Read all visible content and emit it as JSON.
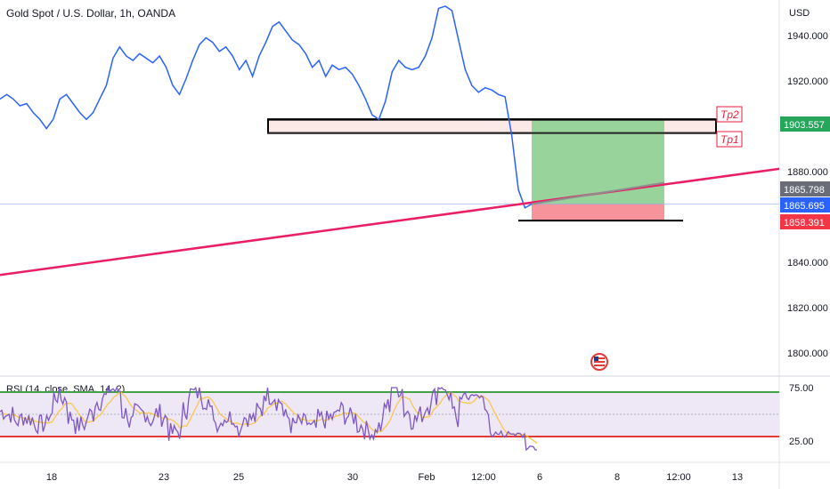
{
  "header": {
    "symbol": "Gold Spot / U.S. Dollar, 1h, OANDA",
    "currency": "USD"
  },
  "colors": {
    "price_line": "#2962ff",
    "trendline": "#e91e63",
    "profit_zone": "#97d39a",
    "loss_zone": "#f7939b",
    "last_price_badge": "#2962ff",
    "target_badge": "#26a65b",
    "stop_badge": "#f23645",
    "crosshair_badge": "#6a6d78",
    "rsi_line": "#7e57c2",
    "rsi_sma": "#f9c74f",
    "rsi_upper": "#43a047",
    "rsi_lower": "#e53935",
    "rsi_band": "#ede7f6",
    "tp_label": "#e91e3c"
  },
  "rsi": {
    "label": "RSI (14, close, SMA, 14, 2)",
    "tick_labels": [
      "75.00",
      "25.00"
    ],
    "upper_level": 75,
    "lower_level": 25
  },
  "annotations": {
    "tp2": "Tp2",
    "tp1": "Tp1",
    "badges": [
      "1903.557",
      "1865.798",
      "1865.695",
      "1858.391"
    ]
  },
  "chart_data": {
    "type": "line",
    "title": "Gold Spot / U.S. Dollar, 1h, OANDA",
    "ylabel": "USD",
    "ylim": [
      1790,
      1955
    ],
    "y_ticks": [
      "1940.000",
      "1920.000",
      "1900.000",
      "1880.000",
      "1840.000",
      "1820.000",
      "1800.000"
    ],
    "x_tick_labels": [
      "18",
      "23",
      "25",
      "30",
      "Feb",
      "12:00",
      "6",
      "8",
      "12:00",
      "13"
    ],
    "series": [
      {
        "values": [
          1912,
          1914,
          1912,
          1909,
          1910,
          1906,
          1903,
          1899,
          1903,
          1912,
          1914,
          1910,
          1906,
          1903,
          1906,
          1912,
          1918,
          1930,
          1935,
          1931,
          1929,
          1932,
          1930,
          1928,
          1931,
          1926,
          1918,
          1914,
          1921,
          1929,
          1936,
          1939,
          1937,
          1933,
          1935,
          1931,
          1925,
          1929,
          1922,
          1931,
          1937,
          1944,
          1946,
          1942,
          1938,
          1936,
          1932,
          1926,
          1929,
          1922,
          1927,
          1925,
          1926,
          1923,
          1918,
          1912,
          1905,
          1903,
          1911,
          1924,
          1929,
          1926,
          1925,
          1926,
          1931,
          1939,
          1952,
          1953,
          1951,
          1938,
          1925,
          1918,
          1915,
          1917,
          1916,
          1914,
          1913,
          1896,
          1872,
          1864,
          1865.7
        ]
      }
    ],
    "trendline": {
      "label": "",
      "start_value": 1836,
      "end_value": 1882
    },
    "position": {
      "entry": 1865.695,
      "target": 1903.557,
      "stop": 1858.391,
      "crosshair": 1865.798
    },
    "resistance_zone": {
      "top": 1903,
      "bottom": 1897
    }
  }
}
